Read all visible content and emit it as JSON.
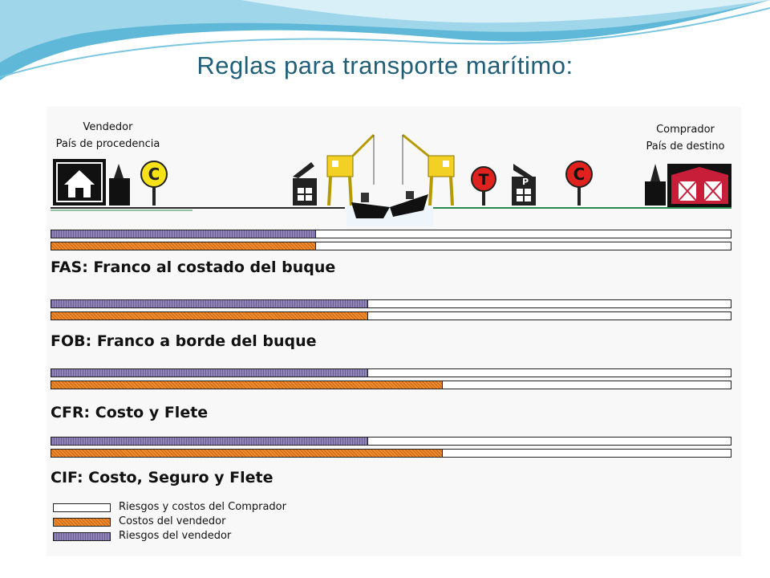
{
  "title": "Reglas para transporte marítimo:",
  "seller": {
    "line1": "Vendedor",
    "line2": "País de procedencia"
  },
  "buyer": {
    "line1": "Comprador",
    "line2": "País de destino"
  },
  "signs": {
    "seller_cost": "C",
    "terminal": "T",
    "port": "P",
    "buyer_cost": "C"
  },
  "rules": [
    {
      "label": "FAS: Franco al costado del buque",
      "seller_risk": 0.39,
      "seller_cost": 0.39
    },
    {
      "label": "FOB: Franco a borde del buque",
      "seller_risk": 0.467,
      "seller_cost": 0.467
    },
    {
      "label": "CFR: Costo y Flete",
      "seller_risk": 0.467,
      "seller_cost": 0.576
    },
    {
      "label": "CIF: Costo, Seguro y Flete",
      "seller_risk": 0.467,
      "seller_cost": 0.576
    }
  ],
  "legend": [
    {
      "key": "buyer",
      "text": "Riesgos y costos del Comprador"
    },
    {
      "key": "cost",
      "text": "Costos del vendedor"
    },
    {
      "key": "risk",
      "text": "Riesgos del vendedor"
    }
  ],
  "colors": {
    "seller_risk": "#8f84b5",
    "seller_cost": "#f08a2a",
    "buyer": "#ffffff",
    "sign_yellow": "#f7e21a",
    "sign_red": "#e0221e",
    "crane": "#f2d024",
    "title": "#1f5f7a"
  }
}
